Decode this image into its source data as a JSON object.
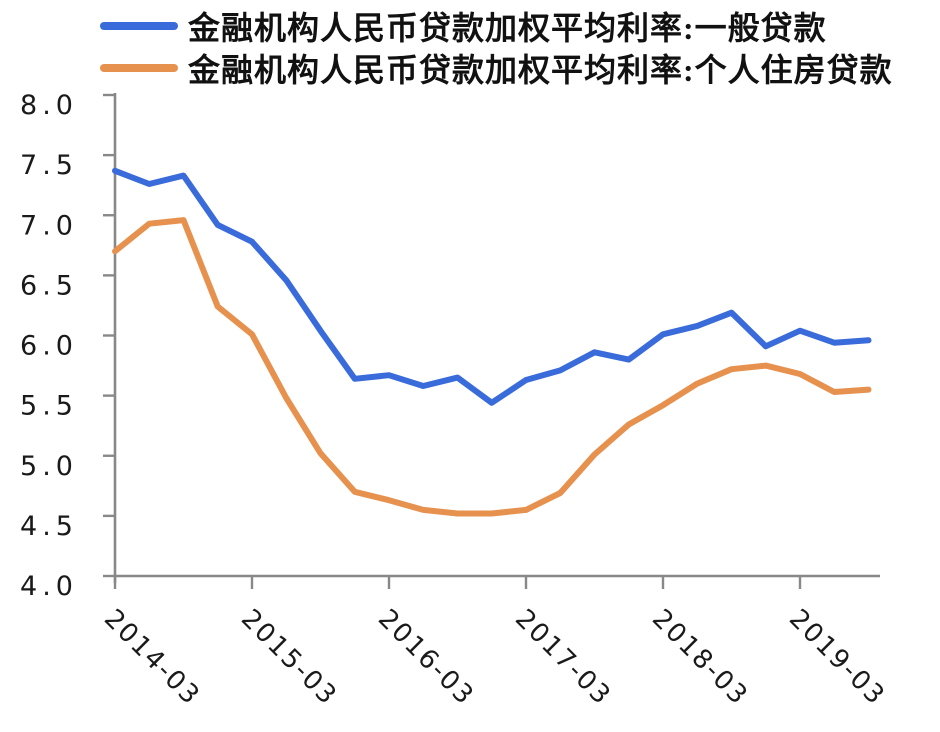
{
  "chart_data": {
    "type": "line",
    "x": [
      "2014-03",
      "2014-06",
      "2014-09",
      "2014-12",
      "2015-03",
      "2015-06",
      "2015-09",
      "2015-12",
      "2016-03",
      "2016-06",
      "2016-09",
      "2016-12",
      "2017-03",
      "2017-06",
      "2017-09",
      "2017-12",
      "2018-03",
      "2018-06",
      "2018-09",
      "2018-12",
      "2019-03",
      "2019-06",
      "2019-09"
    ],
    "series": [
      {
        "name": "金融机构人民币贷款加权平均利率:一般贷款",
        "color": "#3a6bda",
        "values": [
          7.37,
          7.26,
          7.33,
          6.92,
          6.78,
          6.46,
          6.04,
          5.64,
          5.67,
          5.58,
          5.65,
          5.44,
          5.63,
          5.71,
          5.86,
          5.8,
          6.01,
          6.08,
          6.19,
          5.91,
          6.04,
          5.94,
          5.96
        ]
      },
      {
        "name": "金融机构人民币贷款加权平均利率:个人住房贷款",
        "color": "#e7914f",
        "values": [
          6.7,
          6.93,
          6.96,
          6.24,
          6.01,
          5.48,
          5.02,
          4.7,
          4.63,
          4.55,
          4.52,
          4.52,
          4.55,
          4.69,
          5.01,
          5.26,
          5.42,
          5.6,
          5.72,
          5.75,
          5.68,
          5.53,
          5.55
        ]
      }
    ],
    "title": "",
    "xlabel": "",
    "ylabel": "",
    "ylim": [
      4.0,
      8.0
    ],
    "ytick_labels": [
      "8.0",
      "7.5",
      "7.0",
      "6.5",
      "6.0",
      "5.5",
      "5.0",
      "4.5",
      "4.0"
    ],
    "xtick_labels": [
      "2014-03",
      "2015-03",
      "2016-03",
      "2017-03",
      "2018-03",
      "2019-03"
    ],
    "grid": false,
    "legend_position": "top-left",
    "axis_color": "#888888",
    "tick_label_color": "#1a1a1a"
  }
}
